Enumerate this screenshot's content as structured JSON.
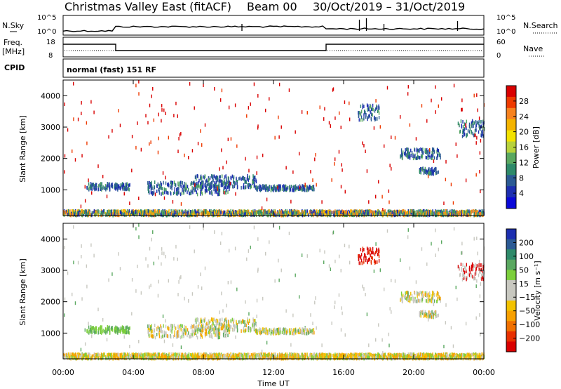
{
  "header": {
    "station": "Christmas Valley East (fitACF)",
    "beam": "Beam 00",
    "dates": "30/Oct/2019 – 31/Oct/2019"
  },
  "noise_panel": {
    "left_label": "N.Sky",
    "right_label": "N.Search",
    "left_ticks": [
      "10^5",
      "10^0"
    ],
    "right_ticks": [
      "10^5",
      "10^0"
    ]
  },
  "freq_panel": {
    "left_label_line1": "Freq.",
    "left_label_line2": "[MHz]",
    "right_label": "Nave",
    "left_ticks": [
      "18",
      "8"
    ],
    "right_ticks": [
      "60",
      "0"
    ]
  },
  "cpid": {
    "label": "CPID",
    "mode": "normal (fast) 151 RF"
  },
  "chart_data": [
    {
      "type": "heatmap",
      "panel": "power",
      "ylabel": "Slant Range [km]",
      "xlabel": "",
      "y_ticks": [
        "4000",
        "3000",
        "2000",
        "1000"
      ],
      "y_tick_values": [
        4000,
        3000,
        2000,
        1000
      ],
      "ylim": [
        180,
        4500
      ],
      "colorbar_label": "Power [dB]",
      "colorbar_ticks": [
        "28",
        "24",
        "20",
        "16",
        "12",
        "8",
        "4"
      ],
      "colorbar_colors": [
        "#d90000",
        "#ee3a00",
        "#f7821e",
        "#f4b400",
        "#f2e200",
        "#b8d23c",
        "#5aa860",
        "#2e8a6a",
        "#2b5a94",
        "#1d2fb0",
        "#0a08d8"
      ],
      "echo_regions": [
        {
          "t0": 1.3,
          "t1": 3.8,
          "r0": 1000,
          "r1": 1200
        },
        {
          "t0": 4.8,
          "t1": 9.5,
          "r0": 850,
          "r1": 1250
        },
        {
          "t0": 7.5,
          "t1": 11.0,
          "r0": 1050,
          "r1": 1450
        },
        {
          "t0": 11.0,
          "t1": 14.3,
          "r0": 980,
          "r1": 1130
        },
        {
          "t0": 16.8,
          "t1": 18.0,
          "r0": 3200,
          "r1": 3700
        },
        {
          "t0": 19.2,
          "t1": 21.5,
          "r0": 2000,
          "r1": 2300
        },
        {
          "t0": 20.3,
          "t1": 21.4,
          "r0": 1500,
          "r1": 1700
        },
        {
          "t0": 22.5,
          "t1": 24.0,
          "r0": 2700,
          "r1": 3200
        },
        {
          "t0": 0.0,
          "t1": 24.0,
          "r0": 180,
          "r1": 330
        }
      ]
    },
    {
      "type": "heatmap",
      "panel": "velocity",
      "ylabel": "Slant Range [km]",
      "xlabel": "Time UT",
      "x_ticks": [
        "00:00",
        "04:00",
        "08:00",
        "12:00",
        "16:00",
        "20:00",
        "00:00"
      ],
      "x_tick_hours": [
        0,
        4,
        8,
        12,
        16,
        20,
        24
      ],
      "xlim": [
        0,
        24
      ],
      "y_ticks": [
        "4000",
        "3000",
        "2000",
        "1000"
      ],
      "y_tick_values": [
        4000,
        3000,
        2000,
        1000
      ],
      "ylim": [
        180,
        4500
      ],
      "colorbar_label": "Velocity [m s⁻¹]",
      "colorbar_ticks": [
        "200",
        "100",
        "50",
        "15",
        "−15",
        "−50",
        "−100",
        "−200"
      ],
      "colorbar_colors": [
        "#1d2fb0",
        "#2b5a94",
        "#2e8a6a",
        "#5aa860",
        "#7ccf3c",
        "#c8c8c0",
        "#c8c8c0",
        "#f2c200",
        "#f7a000",
        "#f07000",
        "#e83000",
        "#d90000"
      ]
    }
  ]
}
